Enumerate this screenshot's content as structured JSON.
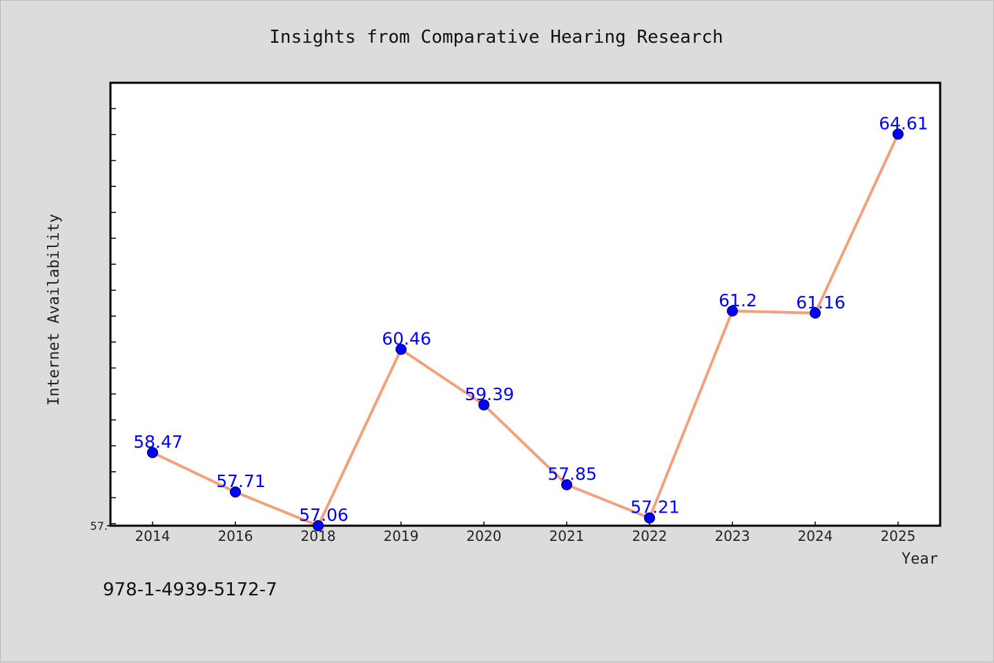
{
  "chart_data": {
    "type": "line",
    "title": "Insights from Comparative Hearing Research",
    "xlabel": "Year",
    "ylabel": "Internet Availability",
    "categories": [
      "2014",
      "2016",
      "2018",
      "2019",
      "2020",
      "2021",
      "2022",
      "2023",
      "2024",
      "2025"
    ],
    "series": [
      {
        "values": [
          58.47,
          57.71,
          57.06,
          60.46,
          59.39,
          57.85,
          57.21,
          61.2,
          61.16,
          64.61
        ],
        "data_labels": [
          "58.47",
          "57.71",
          "57.06",
          "60.46",
          "59.39",
          "57.85",
          "57.21",
          "61.2",
          "61.16",
          "64.61"
        ]
      }
    ],
    "ylim": [
      57.06,
      65.6
    ],
    "y_tick_labels": [
      "57."
    ],
    "grid": false,
    "line_color": "#f4a07a",
    "marker_color": "#0000ff",
    "label_color": "#0000ff"
  },
  "footer": {
    "isbn": "978-1-4939-5172-7"
  }
}
